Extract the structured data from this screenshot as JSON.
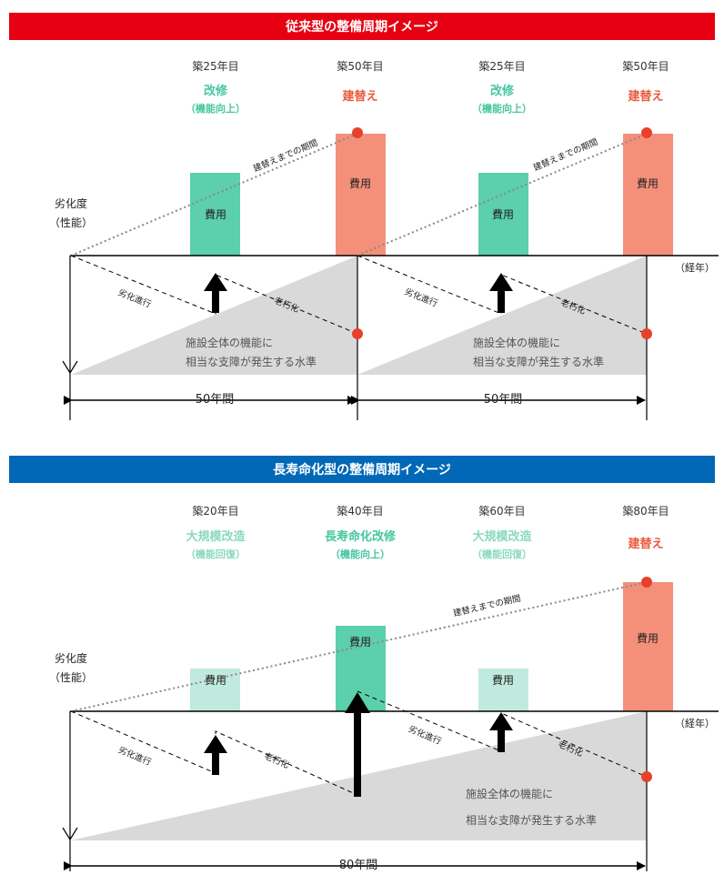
{
  "conventional": {
    "title": "従来型の整備周期イメージ",
    "columns": [
      {
        "year_label": "築25年目",
        "action": "改修",
        "sub": "（機能向上）",
        "cost": "費用"
      },
      {
        "year_label": "築50年目",
        "action": "建替え",
        "sub": "",
        "cost": "費用"
      },
      {
        "year_label": "築25年目",
        "action": "改修",
        "sub": "（機能向上）",
        "cost": "費用"
      },
      {
        "year_label": "築50年目",
        "action": "建替え",
        "sub": "",
        "cost": "費用"
      }
    ],
    "axis_y_label_1": "劣化度",
    "axis_y_label_2": "（性能）",
    "axis_x_label": "（経年）",
    "dotted_label_1": "建替えまでの期間",
    "dotted_label_2": "建替えまでの期間",
    "deg_labels": [
      "劣化進行",
      "老朽化",
      "劣化進行",
      "老朽化"
    ],
    "threshold_1": [
      "施設全体の機能に",
      "相当な支障が発生する水準"
    ],
    "threshold_2": [
      "施設全体の機能に",
      "相当な支障が発生する水準"
    ],
    "span_1": "50年間",
    "span_2": "50年間"
  },
  "long_life": {
    "title": "長寿命化型の整備周期イメージ",
    "columns": [
      {
        "year_label": "築20年目",
        "action": "大規模改造",
        "sub": "（機能回復）",
        "cost": "費用"
      },
      {
        "year_label": "築40年目",
        "action": "長寿命化改修",
        "sub": "（機能向上）",
        "cost": "費用"
      },
      {
        "year_label": "築60年目",
        "action": "大規模改造",
        "sub": "（機能回復）",
        "cost": "費用"
      },
      {
        "year_label": "築80年目",
        "action": "建替え",
        "sub": "",
        "cost": "費用"
      }
    ],
    "axis_y_label_1": "劣化度",
    "axis_y_label_2": "（性能）",
    "axis_x_label": "（経年）",
    "dotted_label": "建替えまでの期間",
    "deg_labels": [
      "劣化進行",
      "老朽化",
      "劣化進行",
      "老朽化"
    ],
    "threshold": [
      "施設全体の機能に",
      "相当な支障が発生する水準"
    ],
    "span": "80年間"
  },
  "colors": {
    "red_banner": "#e60012",
    "blue_banner": "#0068b7",
    "green_bar": "#5ccfab",
    "light_green_bar": "#bfeadd",
    "salmon_bar": "#f4907a",
    "red_text": "#ea5a3c",
    "green_text": "#47c6a0",
    "light_green_text": "#8ad9c0",
    "gray_area": "#d9d9d9",
    "red_dot": "#e8412b"
  }
}
